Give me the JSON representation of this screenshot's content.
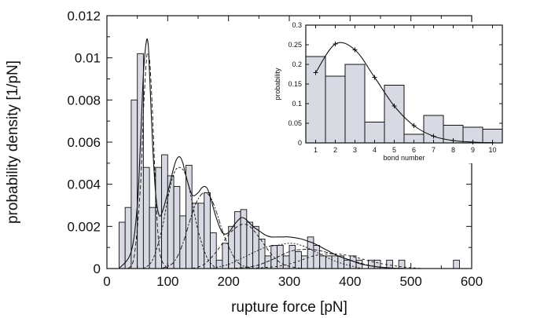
{
  "colors": {
    "bar_fill": "#d8dae3",
    "line": "#111111",
    "background": "#ffffff"
  },
  "chart_data": [
    {
      "type": "bar",
      "xlabel": "rupture force [pN]",
      "ylabel": "probability density [1/pN]",
      "xlim": [
        0,
        600
      ],
      "ylim": [
        0,
        0.012
      ],
      "xticks": [
        "0",
        "100",
        "200",
        "300",
        "400",
        "500",
        "600"
      ],
      "yticks": [
        "0",
        "0.002",
        "0.004",
        "0.006",
        "0.008",
        "0.01",
        "0.012"
      ],
      "bin_width": 10,
      "histogram": {
        "bin_starts": [
          20,
          30,
          40,
          50,
          60,
          70,
          80,
          90,
          100,
          110,
          120,
          130,
          140,
          150,
          160,
          170,
          180,
          190,
          200,
          210,
          220,
          230,
          240,
          250,
          260,
          270,
          280,
          290,
          300,
          310,
          320,
          330,
          340,
          350,
          360,
          370,
          380,
          390,
          400,
          410,
          420,
          430,
          440,
          450,
          460,
          470,
          480,
          490,
          500,
          510,
          520,
          530,
          540,
          550,
          560,
          570
        ],
        "values": [
          0.0022,
          0.0029,
          0.008,
          0.0102,
          0.0048,
          0.0029,
          0.0048,
          0.0054,
          0.0044,
          0.0039,
          0.0025,
          0.0049,
          0.0031,
          0.0031,
          0.0036,
          0.0017,
          0.0004,
          0.0012,
          0.002,
          0.0027,
          0.0028,
          0.0022,
          0.002,
          0.0014,
          0.0006,
          0.0011,
          0.0011,
          0.0006,
          0.0011,
          0.0008,
          0.0006,
          0.0015,
          0.0011,
          0.0006,
          0.0006,
          0.0006,
          0.0006,
          0.0004,
          0.0006,
          0.0004,
          0.0,
          0.0004,
          0.0004,
          0.0,
          0.0004,
          0.0,
          0.0004,
          0.0,
          0.0,
          0.0,
          0.0,
          0.0,
          0.0,
          0.0,
          0.0,
          0.0004
        ]
      },
      "fit_total": {
        "x": [
          20,
          40,
          50,
          55,
          60,
          65,
          68,
          70,
          75,
          80,
          85,
          90,
          100,
          110,
          115,
          120,
          125,
          130,
          140,
          150,
          155,
          160,
          165,
          170,
          180,
          190,
          200,
          210,
          220,
          225,
          230,
          240,
          250,
          260,
          270,
          280,
          290,
          300,
          320,
          330,
          340,
          360,
          380,
          400,
          420,
          440,
          460,
          480,
          500
        ],
        "y": [
          0.0,
          0.0008,
          0.003,
          0.0058,
          0.0092,
          0.0108,
          0.0106,
          0.0094,
          0.006,
          0.0036,
          0.0026,
          0.0026,
          0.0036,
          0.0048,
          0.0052,
          0.0053,
          0.005,
          0.0044,
          0.0035,
          0.0036,
          0.0038,
          0.0039,
          0.0038,
          0.0034,
          0.0024,
          0.0017,
          0.0017,
          0.0021,
          0.0024,
          0.0024,
          0.0023,
          0.002,
          0.0018,
          0.0016,
          0.0015,
          0.0015,
          0.0015,
          0.0015,
          0.0014,
          0.0013,
          0.0012,
          0.0009,
          0.0006,
          0.0004,
          0.0002,
          0.0001,
          4e-05,
          1e-05,
          0.0
        ]
      },
      "fit_components": [
        {
          "x": [
            35,
            45,
            55,
            60,
            65,
            68,
            71,
            75,
            80,
            85,
            90,
            100
          ],
          "y": [
            0.0,
            0.0006,
            0.0038,
            0.0074,
            0.0099,
            0.0102,
            0.0096,
            0.0074,
            0.0037,
            0.0013,
            0.0004,
            0.0
          ]
        },
        {
          "x": [
            60,
            75,
            90,
            100,
            110,
            120,
            130,
            140,
            150,
            165,
            180
          ],
          "y": [
            0.0,
            0.0004,
            0.0018,
            0.0033,
            0.0045,
            0.0048,
            0.0044,
            0.0032,
            0.0018,
            0.0005,
            0.0
          ]
        },
        {
          "x": [
            90,
            110,
            125,
            140,
            150,
            160,
            170,
            180,
            195,
            215,
            240
          ],
          "y": [
            0.0,
            0.0003,
            0.0012,
            0.0026,
            0.0033,
            0.0036,
            0.0034,
            0.0027,
            0.0014,
            0.0003,
            0.0
          ]
        },
        {
          "x": [
            140,
            160,
            180,
            200,
            215,
            225,
            235,
            250,
            270,
            290,
            320
          ],
          "y": [
            0.0,
            0.0002,
            0.0008,
            0.0016,
            0.002,
            0.0021,
            0.002,
            0.0015,
            0.0007,
            0.0002,
            0.0
          ]
        },
        {
          "x": [
            170,
            200,
            230,
            260,
            280,
            300,
            320,
            350,
            380,
            420
          ],
          "y": [
            0.0,
            0.0002,
            0.0006,
            0.001,
            0.0011,
            0.0012,
            0.0011,
            0.0007,
            0.0003,
            0.0
          ]
        },
        {
          "x": [
            200,
            240,
            270,
            300,
            320,
            340,
            370,
            400,
            440,
            480
          ],
          "y": [
            0.0,
            0.0001,
            0.0004,
            0.0008,
            0.0009,
            0.0009,
            0.0007,
            0.0004,
            0.0001,
            0.0
          ]
        },
        {
          "x": [
            230,
            280,
            310,
            340,
            370,
            400,
            440,
            480,
            520
          ],
          "y": [
            0.0,
            0.0001,
            0.0003,
            0.0006,
            0.0007,
            0.0006,
            0.0003,
            0.0001,
            0.0
          ]
        }
      ]
    },
    {
      "type": "bar",
      "xlabel": "bond number",
      "ylabel": "probability",
      "xlim": [
        0.5,
        10.5
      ],
      "ylim": [
        0,
        0.3
      ],
      "xticks": [
        "1",
        "2",
        "3",
        "4",
        "5",
        "6",
        "7",
        "8",
        "9",
        "10"
      ],
      "yticks": [
        "0",
        "0.05",
        "0.1",
        "0.15",
        "0.2",
        "0.25",
        "0.3"
      ],
      "categories": [
        1,
        2,
        3,
        4,
        5,
        6,
        7,
        8,
        9,
        10
      ],
      "values": [
        0.22,
        0.17,
        0.2,
        0.053,
        0.147,
        0.022,
        0.07,
        0.045,
        0.04,
        0.035
      ],
      "fit": {
        "x": [
          1,
          2,
          3,
          4,
          5,
          6,
          7,
          8,
          9,
          10
        ],
        "y": [
          0.179,
          0.252,
          0.237,
          0.167,
          0.094,
          0.044,
          0.017,
          0.006,
          0.002,
          0.0005
        ]
      }
    }
  ]
}
